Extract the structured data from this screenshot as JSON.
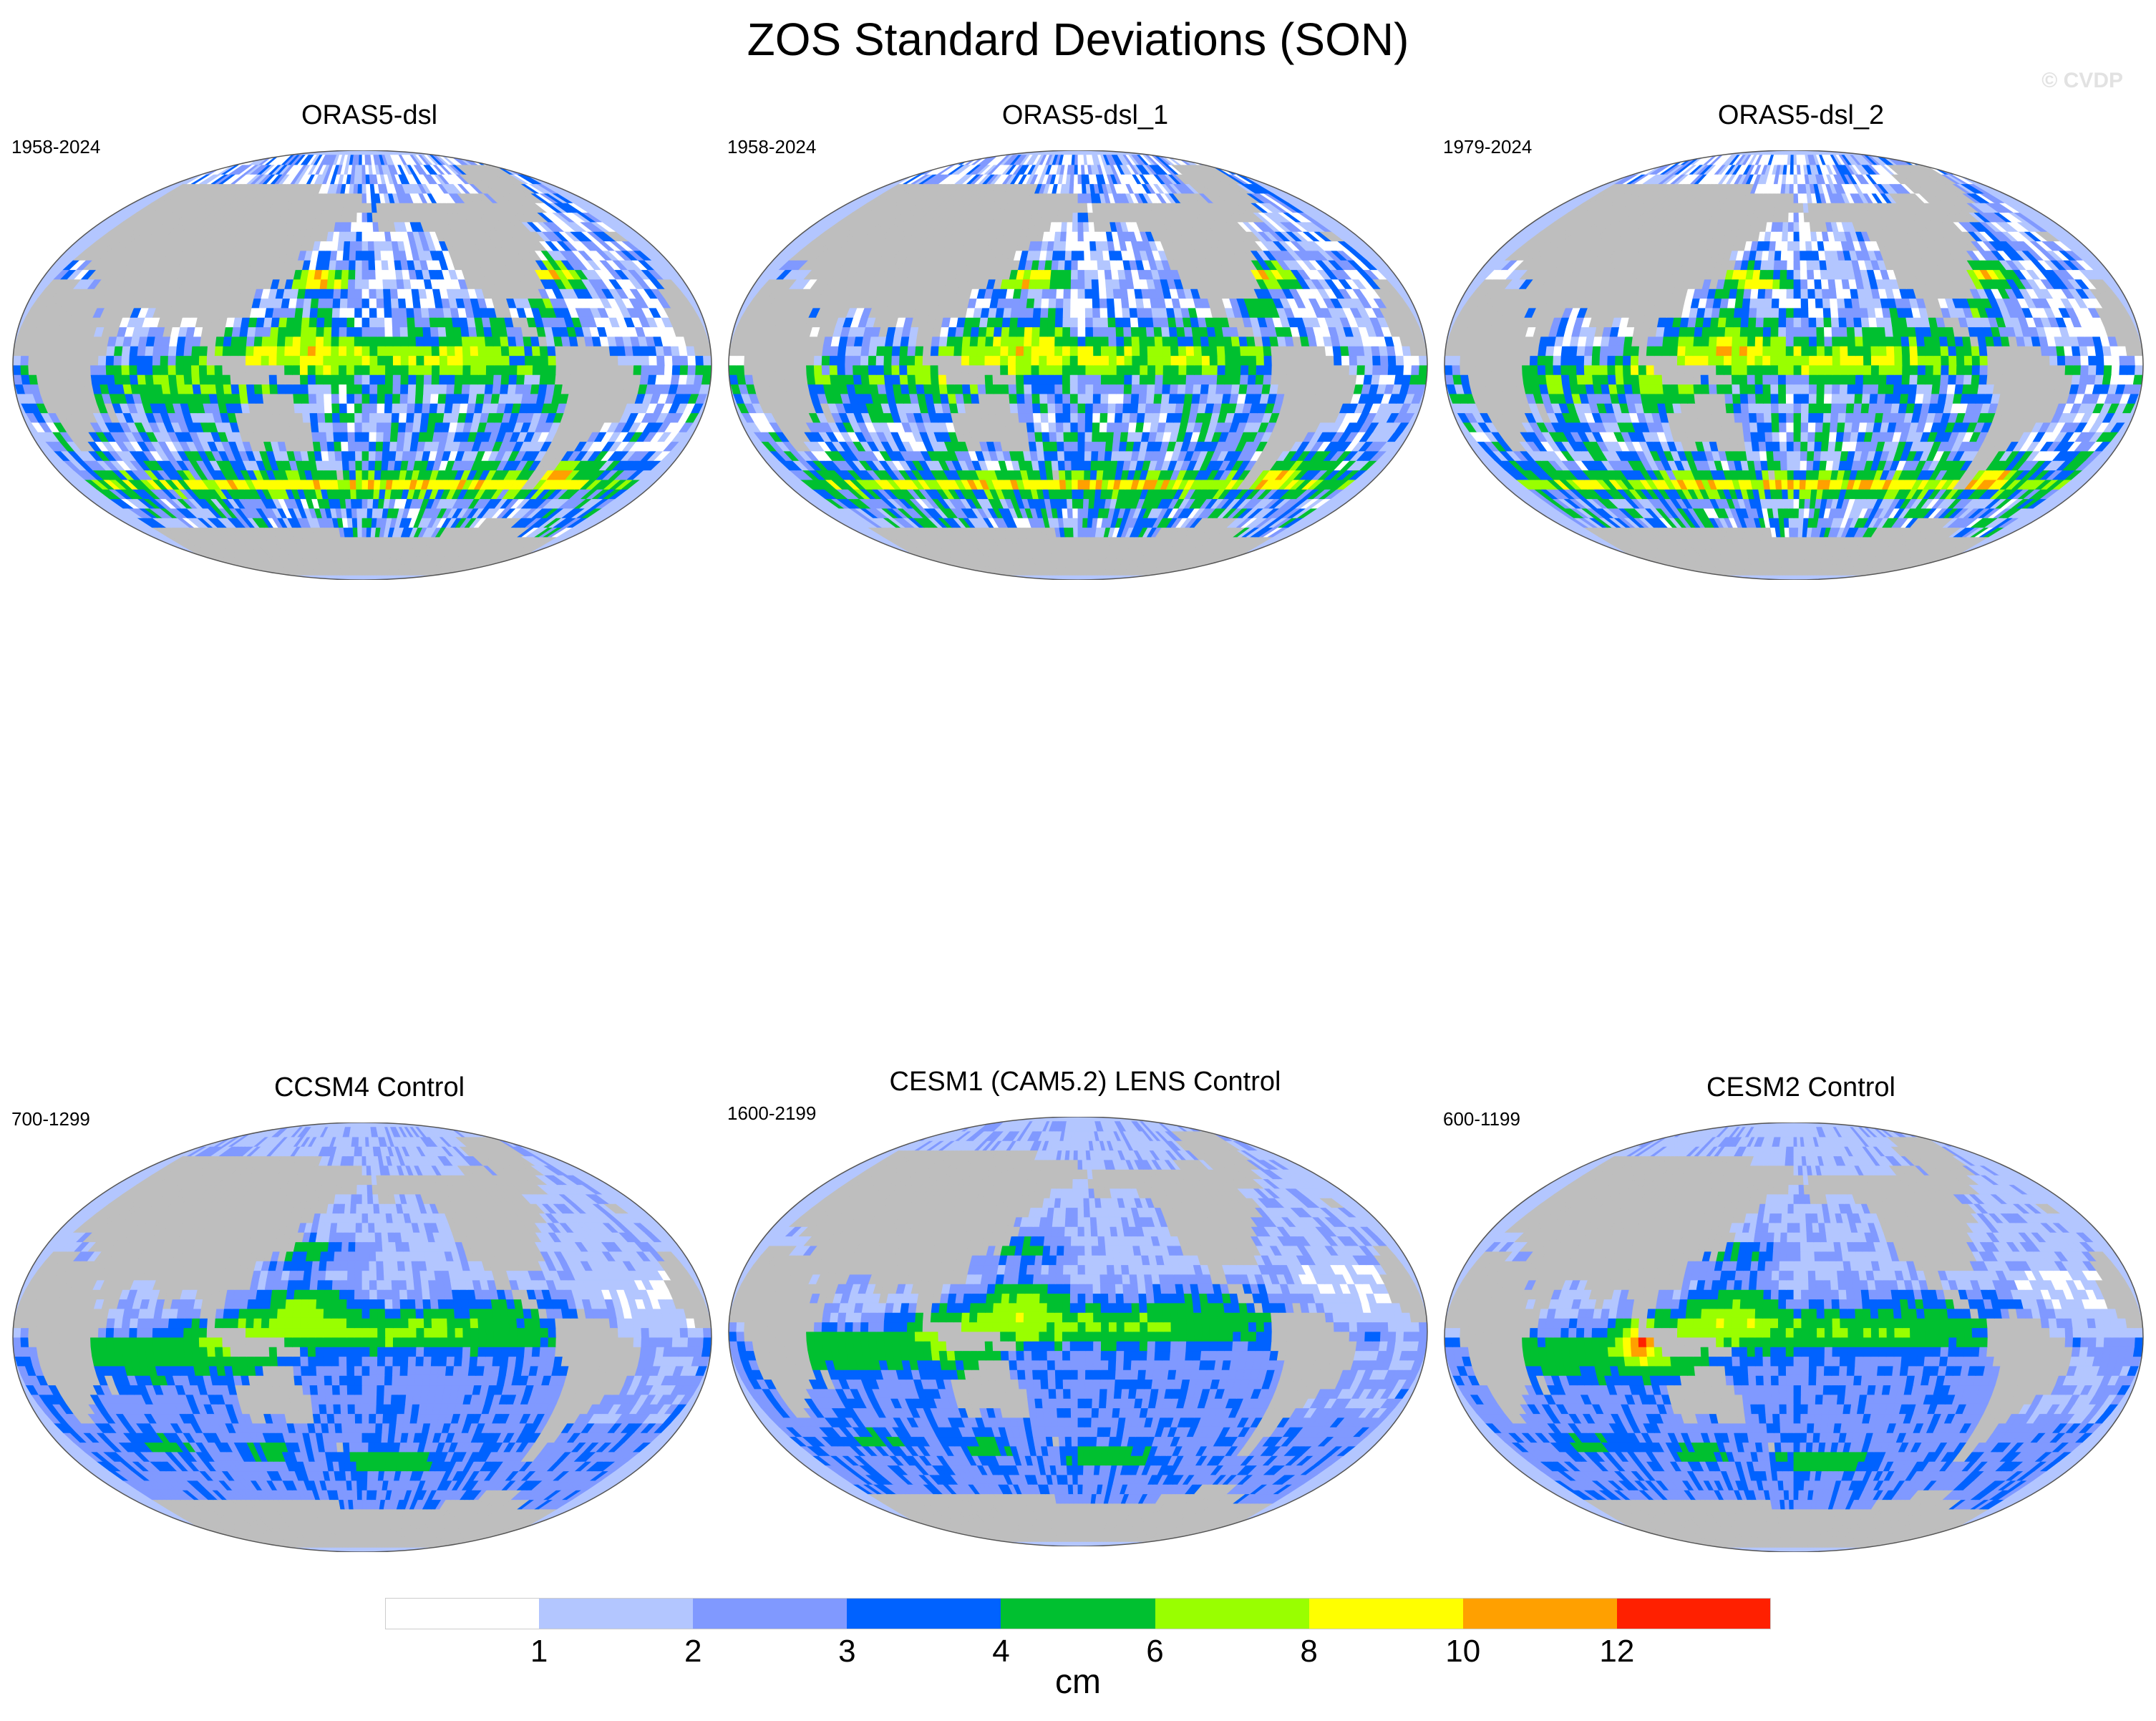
{
  "title": "ZOS Standard Deviations (SON)",
  "watermark": "© CVDP",
  "panels": [
    {
      "title": "ORAS5-dsl",
      "years": "1958-2024",
      "pattern": "reanalysis"
    },
    {
      "title": "ORAS5-dsl_1",
      "years": "1958-2024",
      "pattern": "reanalysis"
    },
    {
      "title": "ORAS5-dsl_2",
      "years": "1979-2024",
      "pattern": "reanalysis"
    },
    {
      "title": "CCSM4 Control",
      "years": "700-1299",
      "pattern": "model"
    },
    {
      "title": "CESM1 (CAM5.2) LENS Control",
      "years": "1600-2199",
      "pattern": "model"
    },
    {
      "title": "CESM2 Control",
      "years": "600-1199",
      "pattern": "model"
    }
  ],
  "colorbar": {
    "units": "cm",
    "levels": [
      "1",
      "2",
      "3",
      "4",
      "6",
      "8",
      "10",
      "12"
    ],
    "colors": [
      "#ffffff",
      "#b3c6ff",
      "#8099ff",
      "#0062ff",
      "#00c030",
      "#99ff00",
      "#ffff00",
      "#ffa000",
      "#ff2000"
    ]
  },
  "colors": {
    "land": "#bebebe",
    "ocean_base": "#b3c6ff"
  }
}
